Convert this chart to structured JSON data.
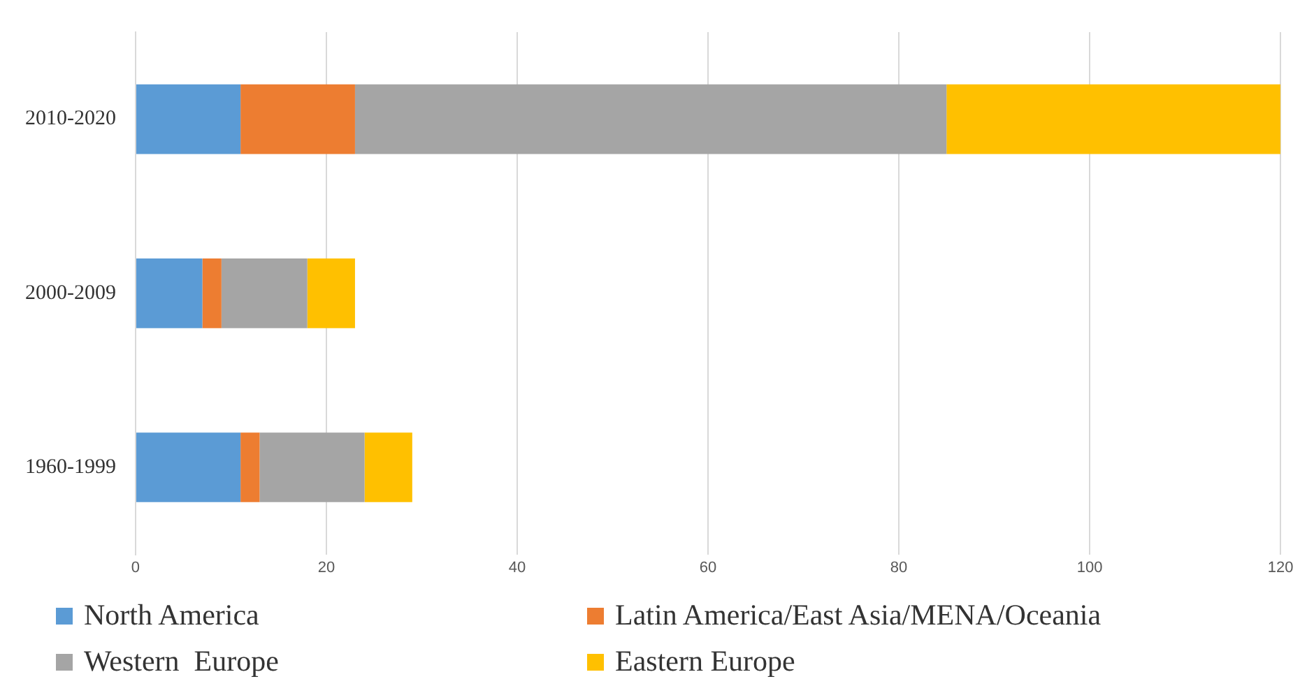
{
  "chart_data": {
    "type": "bar",
    "orientation": "horizontal",
    "stacked": true,
    "categories": [
      "2010-2020",
      "2000-2009",
      "1960-1999"
    ],
    "series": [
      {
        "name": "North America",
        "color": "#5b9bd5",
        "values": [
          11,
          7,
          11
        ]
      },
      {
        "name": "Latin America/East Asia/MENA/Oceania",
        "color": "#ed7d31",
        "values": [
          12,
          2,
          2
        ]
      },
      {
        "name": "Western  Europe",
        "color": "#a5a5a5",
        "values": [
          62,
          9,
          11
        ]
      },
      {
        "name": "Eastern Europe",
        "color": "#ffc000",
        "values": [
          35,
          5,
          5
        ]
      }
    ],
    "xlim": [
      0,
      120
    ],
    "xticks": [
      0,
      20,
      40,
      60,
      80,
      100,
      120
    ],
    "grid": "x",
    "legend": "bottom"
  }
}
